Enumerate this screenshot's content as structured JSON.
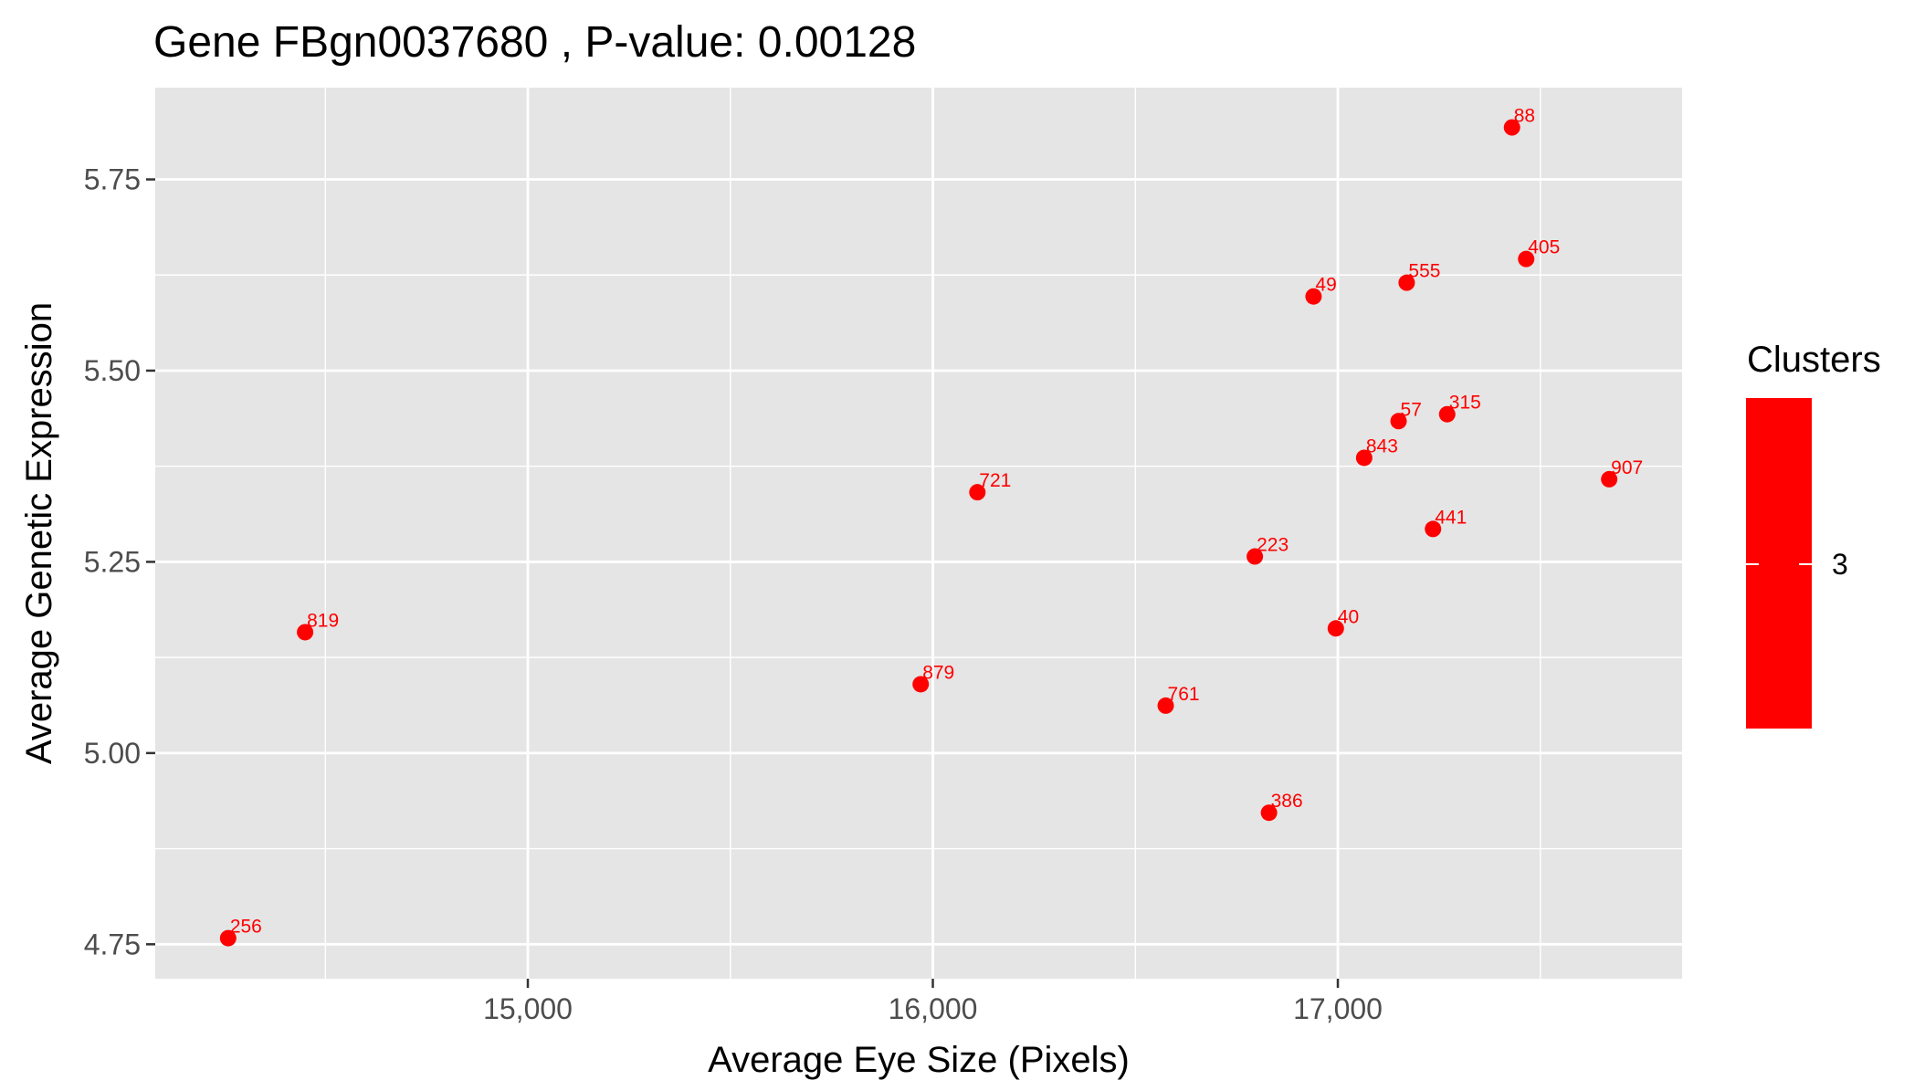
{
  "chart_data": {
    "type": "scatter",
    "title": "Gene FBgn0037680 , P-value: 0.00128",
    "xlabel": "Average Eye Size (Pixels)",
    "ylabel": "Average Genetic Expression",
    "xlim": [
      14080,
      17850
    ],
    "ylim": [
      4.705,
      5.87
    ],
    "x_ticks": [
      {
        "value": 15000,
        "label": "15,000"
      },
      {
        "value": 16000,
        "label": "16,000"
      },
      {
        "value": 17000,
        "label": "17,000"
      }
    ],
    "y_ticks": [
      {
        "value": 4.75,
        "label": "4.75"
      },
      {
        "value": 5.0,
        "label": "5.00"
      },
      {
        "value": 5.25,
        "label": "5.25"
      },
      {
        "value": 5.5,
        "label": "5.50"
      },
      {
        "value": 5.75,
        "label": "5.75"
      }
    ],
    "x_minor": [
      14500,
      15500,
      16500,
      17500
    ],
    "y_minor": [
      4.875,
      5.125,
      5.375,
      5.625
    ],
    "grid": true,
    "point_color": "#ff0000",
    "panel_color": "#e5e5e5",
    "points": [
      {
        "label": "88",
        "x": 17430,
        "y": 5.818
      },
      {
        "label": "405",
        "x": 17465,
        "y": 5.646
      },
      {
        "label": "555",
        "x": 17170,
        "y": 5.615
      },
      {
        "label": "49",
        "x": 16940,
        "y": 5.597
      },
      {
        "label": "315",
        "x": 17270,
        "y": 5.443
      },
      {
        "label": "57",
        "x": 17150,
        "y": 5.434
      },
      {
        "label": "843",
        "x": 17065,
        "y": 5.386
      },
      {
        "label": "907",
        "x": 17670,
        "y": 5.358
      },
      {
        "label": "721",
        "x": 16110,
        "y": 5.341
      },
      {
        "label": "441",
        "x": 17235,
        "y": 5.293
      },
      {
        "label": "223",
        "x": 16795,
        "y": 5.257
      },
      {
        "label": "819",
        "x": 14450,
        "y": 5.158
      },
      {
        "label": "40",
        "x": 16995,
        "y": 5.163
      },
      {
        "label": "879",
        "x": 15970,
        "y": 5.09
      },
      {
        "label": "761",
        "x": 16575,
        "y": 5.062
      },
      {
        "label": "386",
        "x": 16830,
        "y": 4.922
      },
      {
        "label": "256",
        "x": 14260,
        "y": 4.758
      }
    ],
    "legend": {
      "title": "Clusters",
      "entries": [
        {
          "label": "3",
          "color": "#ff0000"
        }
      ],
      "position": "right"
    }
  }
}
